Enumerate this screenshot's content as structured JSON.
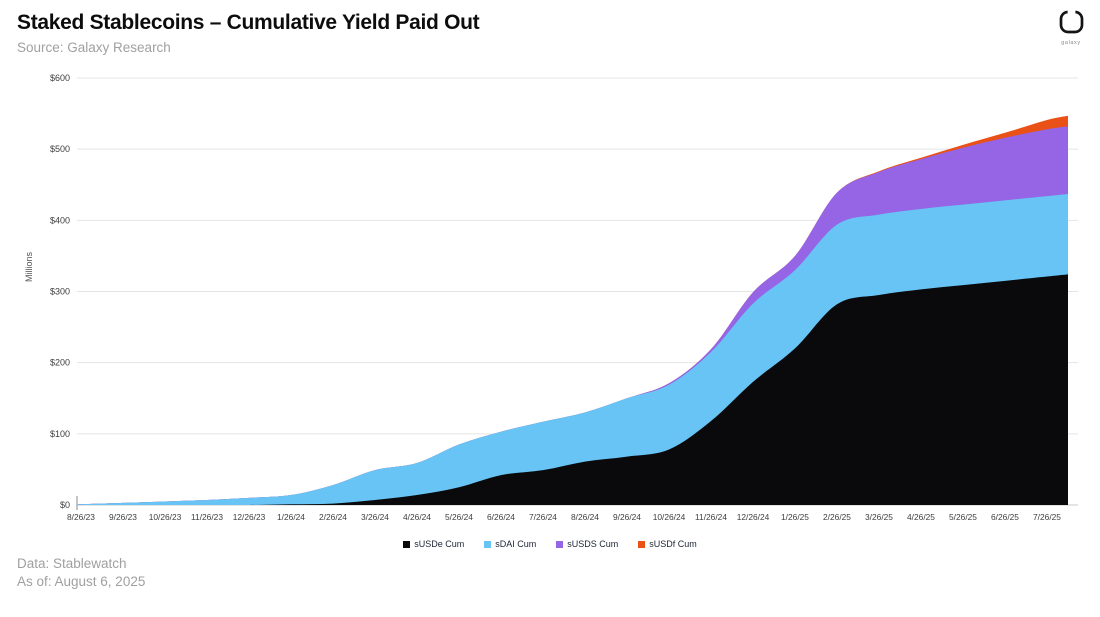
{
  "header": {
    "title": "Staked Stablecoins – Cumulative Yield Paid Out",
    "source": "Source: Galaxy Research",
    "logo_text": "galaxy"
  },
  "footer": {
    "line1": "Data: Stablewatch",
    "line2": "As of: August 6, 2025"
  },
  "chart_data": {
    "type": "area",
    "stacked": true,
    "title": "Staked Stablecoins – Cumulative Yield Paid Out",
    "xlabel": "",
    "ylabel": "Millions",
    "ylim": [
      0,
      600
    ],
    "y_tick_labels": [
      "$0",
      "$100",
      "$200",
      "$300",
      "$400",
      "$500",
      "$600"
    ],
    "grid": true,
    "legend_position": "bottom",
    "x_labels": [
      "8/26/23",
      "9/26/23",
      "10/26/23",
      "11/26/23",
      "12/26/23",
      "1/26/24",
      "2/26/24",
      "3/26/24",
      "4/26/24",
      "5/26/24",
      "6/26/24",
      "7/26/24",
      "8/26/24",
      "9/26/24",
      "10/26/24",
      "11/26/24",
      "12/26/24",
      "1/26/25",
      "2/26/25",
      "3/26/25",
      "4/26/25",
      "5/26/25",
      "6/26/25",
      "7/26/25"
    ],
    "x_dates": [
      "8/26/23",
      "9/26/23",
      "10/26/23",
      "11/26/23",
      "12/26/23",
      "1/26/24",
      "2/26/24",
      "3/26/24",
      "4/26/24",
      "5/26/24",
      "6/26/24",
      "7/26/24",
      "8/26/24",
      "9/26/24",
      "10/26/24",
      "11/26/24",
      "12/26/24",
      "1/26/25",
      "2/26/25",
      "3/26/25",
      "4/26/25",
      "5/26/25",
      "6/26/25",
      "7/26/25",
      "8/6/25"
    ],
    "units": "USD millions",
    "series": [
      {
        "name": "sUSDe Cum",
        "color": "#0a0a0d",
        "values": [
          0,
          0,
          0,
          0,
          0,
          1,
          2,
          7,
          14,
          25,
          42,
          49,
          61,
          68,
          78,
          118,
          173,
          220,
          282,
          295,
          303,
          309,
          315,
          321,
          324
        ]
      },
      {
        "name": "sDAI Cum",
        "color": "#68c4f4",
        "values": [
          1,
          3,
          5,
          7,
          10,
          13,
          26,
          42,
          45,
          60,
          61,
          68,
          69,
          82,
          91,
          97,
          110,
          110,
          112,
          113,
          113,
          113,
          113,
          113,
          113
        ]
      },
      {
        "name": "sUSDS Cum",
        "color": "#9565e6",
        "values": [
          0,
          0,
          0,
          0,
          0,
          0,
          0,
          0,
          0,
          0,
          0,
          0,
          0,
          0,
          2,
          4,
          16,
          20,
          45,
          60,
          70,
          80,
          88,
          94,
          95
        ]
      },
      {
        "name": "sUSDf Cum",
        "color": "#e95116",
        "values": [
          0,
          0,
          0,
          0,
          0,
          0,
          0,
          0,
          0,
          0,
          0,
          0,
          0,
          0,
          0,
          0,
          0,
          0,
          0,
          1,
          2,
          4,
          7,
          13,
          15
        ]
      }
    ],
    "colors": {
      "grid": "#e4e4e4",
      "baseline": "#c9c9c9",
      "axis_text": "#3d3d3d"
    }
  }
}
